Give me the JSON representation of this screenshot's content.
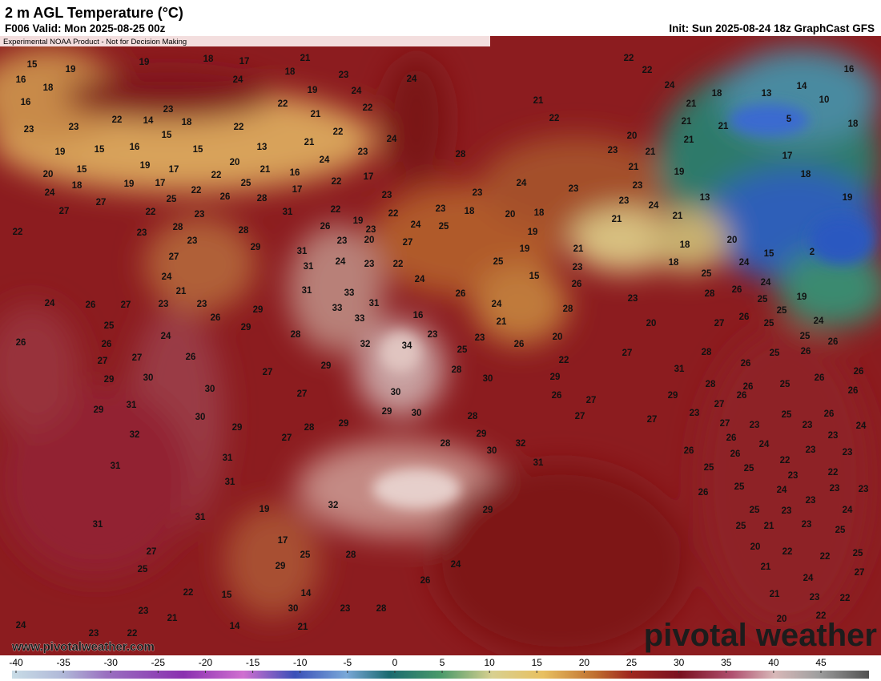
{
  "header": {
    "title": "2 m AGL Temperature (°C)",
    "valid": "F006 Valid: Mon 2025-08-25 00z",
    "init": "Init: Sun 2025-08-24 18z GraphCast GFS",
    "disclaimer": "Experimental NOAA Product - Not for Decision Making"
  },
  "map": {
    "labels": [
      15,
      19,
      19,
      18,
      17,
      21,
      18,
      24,
      23,
      24,
      24,
      22,
      22,
      24,
      16,
      16,
      18,
      16,
      19,
      22,
      22,
      18,
      13,
      14,
      10,
      5,
      18,
      23,
      23,
      22,
      14,
      23,
      18,
      22,
      21,
      22,
      24,
      21,
      22,
      21,
      21,
      21,
      21,
      19,
      15,
      16,
      15,
      15,
      13,
      21,
      23,
      28,
      23,
      20,
      21,
      17,
      15,
      19,
      17,
      20,
      21,
      16,
      24,
      17,
      18,
      21,
      19,
      20,
      22,
      25,
      18,
      19,
      17,
      24,
      22,
      26,
      28,
      17,
      22,
      23,
      23,
      24,
      23,
      23,
      23,
      24,
      13,
      19,
      27,
      25,
      27,
      22,
      23,
      31,
      22,
      19,
      22,
      24,
      23,
      18,
      20,
      18,
      21,
      21,
      22,
      23,
      28,
      28,
      26,
      23,
      25,
      19,
      23,
      29,
      23,
      20,
      27,
      19,
      21,
      18,
      20,
      15,
      2,
      27,
      31,
      31,
      24,
      23,
      22,
      25,
      23,
      18,
      24,
      24,
      24,
      15,
      26,
      25,
      24,
      21,
      31,
      33,
      26,
      28,
      26,
      19,
      25,
      24,
      26,
      27,
      23,
      23,
      29,
      33,
      31,
      24,
      28,
      23,
      25,
      25,
      26,
      33,
      16,
      21,
      24,
      29,
      28,
      32,
      34,
      23,
      23,
      20,
      20,
      27,
      26,
      25,
      25,
      26,
      24,
      26,
      27,
      26,
      25,
      26,
      27,
      28,
      26,
      25,
      26,
      26,
      27,
      22,
      30,
      29,
      27,
      29,
      28,
      30,
      29,
      31,
      28,
      26,
      25,
      26,
      26,
      30,
      27,
      30,
      26,
      27,
      29,
      27,
      26,
      26,
      29,
      31,
      30,
      29,
      30,
      28,
      27,
      27,
      23,
      25,
      26,
      24,
      29,
      27,
      28,
      29,
      27,
      23,
      23,
      32,
      29,
      28,
      32,
      26,
      24,
      23,
      30,
      26,
      26,
      23,
      23,
      31,
      31,
      25,
      25,
      22,
      31,
      23,
      22,
      31,
      25,
      24,
      23,
      23,
      26,
      32,
      29,
      25,
      23,
      23,
      19,
      24,
      31,
      31,
      25,
      21,
      23,
      25,
      17,
      20,
      22,
      22,
      25,
      27,
      25,
      28,
      25,
      29,
      24,
      21,
      27,
      24,
      22,
      15,
      14,
      26,
      23,
      21,
      30,
      23,
      28,
      21,
      23,
      22,
      20,
      22,
      24,
      23,
      22,
      14,
      21
    ]
  },
  "colorbar": {
    "ticks": [
      -40,
      -35,
      -30,
      -25,
      -20,
      -15,
      -10,
      -5,
      0,
      5,
      10,
      15,
      20,
      25,
      30,
      35,
      40,
      45
    ]
  },
  "footer": {
    "url": "www.pivotalweather.com",
    "brand": "pivotal weather"
  }
}
